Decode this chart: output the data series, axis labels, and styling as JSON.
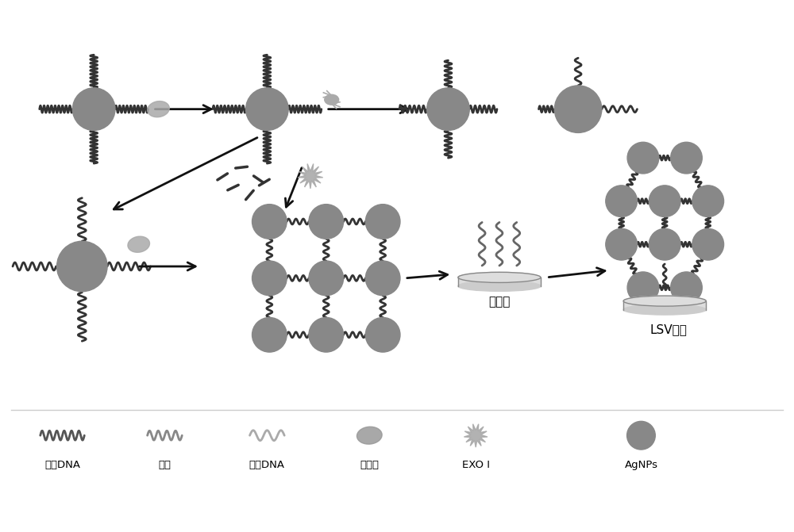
{
  "bg_color": "#ffffff",
  "gray_circle": "#888888",
  "gray_dark": "#808080",
  "line_color": "#333333",
  "arrow_color": "#111111",
  "legend_labels": [
    "捕获DNA",
    "适体",
    "互补DNA",
    "目标物",
    "EXO I",
    "AgNPs"
  ],
  "gold_electrode_label": "金电极",
  "lsv_label": "LSV检测",
  "node_color": "#888888",
  "dna_arm_color": "#444444",
  "fragment_color": "#555555",
  "target_color": "#999999",
  "exo_color": "#aaaaaa"
}
